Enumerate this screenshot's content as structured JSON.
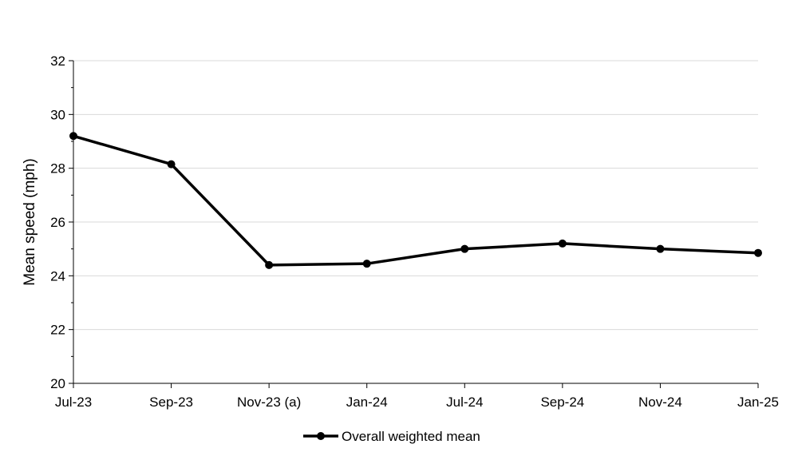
{
  "chart_data": {
    "type": "line",
    "title": "",
    "xlabel": "",
    "ylabel": "Mean speed (mph)",
    "categories": [
      "Jul-23",
      "Sep-23",
      "Nov-23 (a)",
      "Jan-24",
      "Jul-24",
      "Sep-24",
      "Nov-24",
      "Jan-25"
    ],
    "series": [
      {
        "name": "Overall weighted mean",
        "values": [
          29.2,
          28.15,
          24.4,
          24.45,
          25.0,
          25.2,
          25.0,
          24.85
        ],
        "color": "#000000"
      }
    ],
    "ylim": [
      20,
      32
    ],
    "yticks": [
      20,
      22,
      24,
      26,
      28,
      30,
      32
    ],
    "grid": true,
    "gridlines_color": "#d9d9d9",
    "legend_position": "bottom"
  }
}
